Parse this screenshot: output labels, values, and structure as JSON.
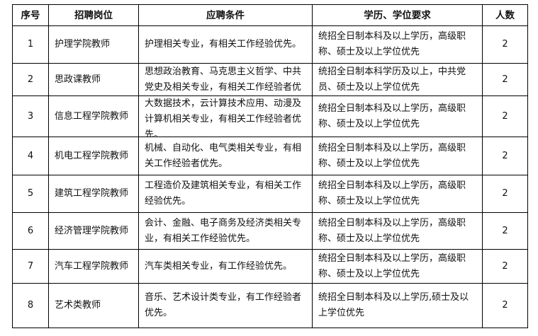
{
  "headers": [
    "序号",
    "招聘岗位",
    "应聘条件",
    "学历、学位要求",
    "人数"
  ],
  "rows": [
    {
      "no": "1",
      "post": "护理学院教师",
      "cond": "护理相关专业，有相关工作经验优先。",
      "edu": "统招全日制本科及以上学历，高级职称、硕士及以上学位优先",
      "num": "2"
    },
    {
      "no": "2",
      "post": "思政课教师",
      "cond": "思想政治教育、马克思主义哲学、中共党史及相关专业，有相关工作经验者优",
      "edu": "统招全日制本科学历及以上，中共党员、硕士及以上学位优先",
      "num": "2"
    },
    {
      "no": "3",
      "post": "信息工程学院教师",
      "cond": "大数据技术，云计算技术应用、动漫及计算机相关专业，有相关工作经验者优先。",
      "edu": "统招全日制本科及以上学历，高级职称、硕士及以上学位优先",
      "num": "2"
    },
    {
      "no": "4",
      "post": "机电工程学院教师",
      "cond": "机械、自动化、电气类相关专业，有相关工作经验者优先。",
      "edu": "统招全日制本科及以上学历，高级职称、硕士及以上学位优先",
      "num": "2"
    },
    {
      "no": "5",
      "post": "建筑工程学院教师",
      "cond": "工程造价及建筑相关专业，有相关工作经验优先。",
      "edu": "统招全日制本科及以上学历，高级职称、硕士及以上学位优先",
      "num": "2"
    },
    {
      "no": "6",
      "post": "经济管理学院教师",
      "cond": "会计、金融、电子商务及经济类相关专业，有相关工作经验优先。",
      "edu": "统招全日制本科及以上学历，高级职称、硕士及以上学位优先",
      "num": "2"
    },
    {
      "no": "7",
      "post": "汽车工程学院教师",
      "cond": "汽车类相关专业，有工作经验优先。",
      "edu": "统招全日制本科及以上学历，高级职称、硕士及以上学位优先",
      "num": "2"
    },
    {
      "no": "8",
      "post": "艺术类教师",
      "cond": "音乐、艺术设计类专业，有工作经验者优先。",
      "edu": "统招全日制本科及以上学历,硕士及以上学位优先",
      "num": "2"
    }
  ]
}
